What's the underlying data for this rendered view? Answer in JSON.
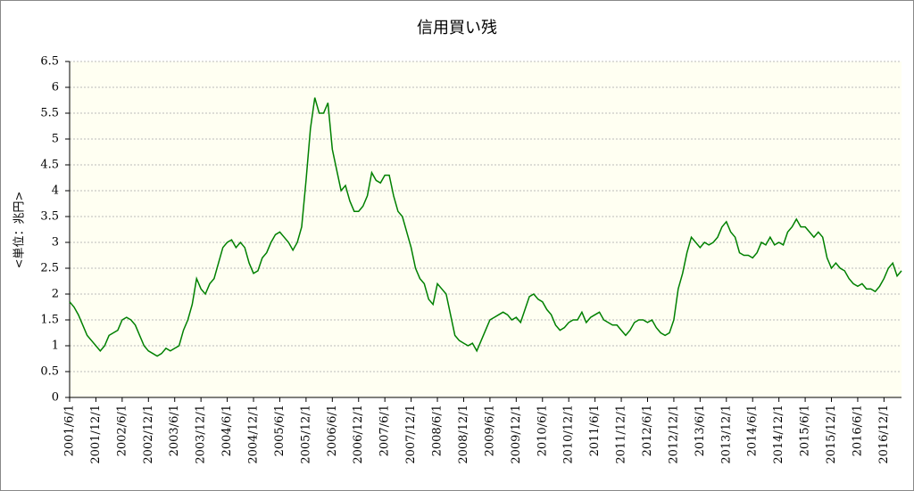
{
  "chart_data": {
    "type": "line",
    "title": "信用買い残",
    "y_label": "<単位：兆円>",
    "color": "#008000",
    "grid": true,
    "ylim": [
      0,
      6.5
    ],
    "yticks": [
      0,
      0.5,
      1,
      1.5,
      2,
      2.5,
      3,
      3.5,
      4,
      4.5,
      5,
      5.5,
      6,
      6.5
    ],
    "categories": [
      "2001/6/1",
      null,
      null,
      null,
      null,
      null,
      "2001/12/1",
      null,
      null,
      null,
      null,
      null,
      "2002/6/1",
      null,
      null,
      null,
      null,
      null,
      "2002/12/1",
      null,
      null,
      null,
      null,
      null,
      "2003/6/1",
      null,
      null,
      null,
      null,
      null,
      "2003/12/1",
      null,
      null,
      null,
      null,
      null,
      "2004/6/1",
      null,
      null,
      null,
      null,
      null,
      "2004/12/1",
      null,
      null,
      null,
      null,
      null,
      "2005/6/1",
      null,
      null,
      null,
      null,
      null,
      "2005/12/1",
      null,
      null,
      null,
      null,
      null,
      "2006/6/1",
      null,
      null,
      null,
      null,
      null,
      "2006/12/1",
      null,
      null,
      null,
      null,
      null,
      "2007/6/1",
      null,
      null,
      null,
      null,
      null,
      "2007/12/1",
      null,
      null,
      null,
      null,
      null,
      "2008/6/1",
      null,
      null,
      null,
      null,
      null,
      "2008/12/1",
      null,
      null,
      null,
      null,
      null,
      "2009/6/1",
      null,
      null,
      null,
      null,
      null,
      "2009/12/1",
      null,
      null,
      null,
      null,
      null,
      "2010/6/1",
      null,
      null,
      null,
      null,
      null,
      "2010/12/1",
      null,
      null,
      null,
      null,
      null,
      "2011/6/1",
      null,
      null,
      null,
      null,
      null,
      "2011/12/1",
      null,
      null,
      null,
      null,
      null,
      "2012/6/1",
      null,
      null,
      null,
      null,
      null,
      "2012/12/1",
      null,
      null,
      null,
      null,
      null,
      "2013/6/1",
      null,
      null,
      null,
      null,
      null,
      "2013/12/1",
      null,
      null,
      null,
      null,
      null,
      "2014/6/1",
      null,
      null,
      null,
      null,
      null,
      "2014/12/1",
      null,
      null,
      null,
      null,
      null,
      "2015/6/1",
      null,
      null,
      null,
      null,
      null,
      "2015/12/1",
      null,
      null,
      null,
      null,
      null,
      "2016/6/1",
      null,
      null,
      null,
      null,
      null,
      "2016/12/1",
      null,
      null,
      null,
      null
    ],
    "values": [
      1.85,
      1.75,
      1.6,
      1.4,
      1.2,
      1.1,
      1.0,
      0.9,
      1.0,
      1.2,
      1.25,
      1.3,
      1.5,
      1.55,
      1.5,
      1.4,
      1.2,
      1.0,
      0.9,
      0.85,
      0.8,
      0.85,
      0.95,
      0.9,
      0.95,
      1.0,
      1.3,
      1.5,
      1.8,
      2.3,
      2.1,
      2.0,
      2.2,
      2.3,
      2.6,
      2.9,
      3.0,
      3.05,
      2.9,
      3.0,
      2.9,
      2.6,
      2.4,
      2.45,
      2.7,
      2.8,
      3.0,
      3.15,
      3.2,
      3.1,
      3.0,
      2.85,
      3.0,
      3.3,
      4.2,
      5.2,
      5.8,
      5.5,
      5.5,
      5.7,
      4.8,
      4.4,
      4.0,
      4.1,
      3.8,
      3.6,
      3.6,
      3.7,
      3.9,
      4.35,
      4.2,
      4.15,
      4.3,
      4.3,
      3.9,
      3.6,
      3.5,
      3.2,
      2.9,
      2.5,
      2.3,
      2.2,
      1.9,
      1.8,
      2.2,
      2.1,
      2.0,
      1.6,
      1.2,
      1.1,
      1.05,
      1.0,
      1.05,
      0.9,
      1.1,
      1.3,
      1.5,
      1.55,
      1.6,
      1.65,
      1.6,
      1.5,
      1.55,
      1.45,
      1.7,
      1.95,
      2.0,
      1.9,
      1.85,
      1.7,
      1.6,
      1.4,
      1.3,
      1.35,
      1.45,
      1.5,
      1.5,
      1.65,
      1.45,
      1.55,
      1.6,
      1.65,
      1.5,
      1.45,
      1.4,
      1.4,
      1.3,
      1.2,
      1.3,
      1.45,
      1.5,
      1.5,
      1.45,
      1.5,
      1.35,
      1.25,
      1.2,
      1.25,
      1.5,
      2.1,
      2.4,
      2.8,
      3.1,
      3.0,
      2.9,
      3.0,
      2.95,
      3.0,
      3.1,
      3.3,
      3.4,
      3.2,
      3.1,
      2.8,
      2.75,
      2.75,
      2.7,
      2.8,
      3.0,
      2.95,
      3.1,
      2.95,
      3.0,
      2.95,
      3.2,
      3.3,
      3.45,
      3.3,
      3.3,
      3.2,
      3.1,
      3.2,
      3.1,
      2.7,
      2.5,
      2.6,
      2.5,
      2.45,
      2.3,
      2.2,
      2.15,
      2.2,
      2.1,
      2.1,
      2.05,
      2.15,
      2.3,
      2.5,
      2.6,
      2.35,
      2.45
    ]
  }
}
